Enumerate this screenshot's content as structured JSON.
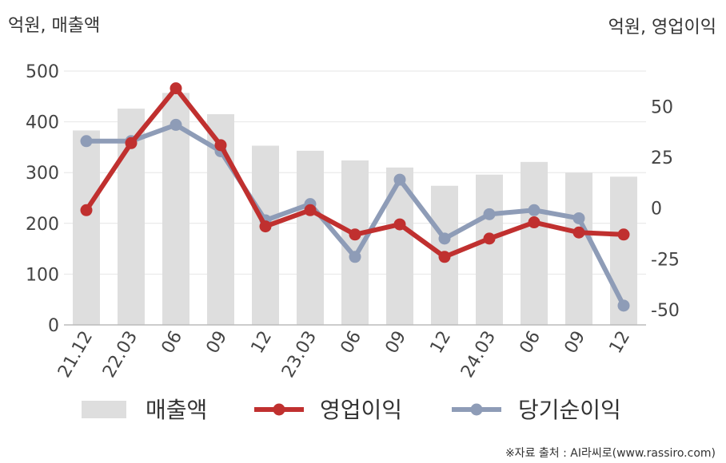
{
  "chart_data": {
    "type": "bar+line",
    "categories": [
      "21.12",
      "22.03",
      "06",
      "09",
      "12",
      "23.03",
      "06",
      "09",
      "12",
      "24.03",
      "06",
      "09",
      "12"
    ],
    "left_axis": {
      "label": "억원, 매출액",
      "ylim": [
        0,
        500
      ],
      "ticks": [
        0,
        100,
        200,
        300,
        400,
        500
      ]
    },
    "right_axis": {
      "label": "억원, 영업이익",
      "ylim": [
        -57.5,
        67.5
      ],
      "ticks": [
        -50,
        -25,
        0,
        25,
        50
      ]
    },
    "series": [
      {
        "name": "매출액",
        "type": "bar",
        "axis": "left",
        "color": "#dedede",
        "values": [
          383,
          426,
          457,
          415,
          353,
          343,
          324,
          310,
          274,
          296,
          321,
          300,
          292
        ]
      },
      {
        "name": "영업이익",
        "type": "line",
        "axis": "right",
        "color": "#c0302f",
        "values": [
          -1,
          32,
          59,
          31,
          -9,
          -1,
          -13,
          -8,
          -24,
          -15,
          -7,
          -12,
          -13
        ]
      },
      {
        "name": "당기순이익",
        "type": "line",
        "axis": "right",
        "color": "#8e9cb7",
        "values": [
          33,
          33,
          41,
          28,
          -6,
          2,
          -24,
          14,
          -15,
          -3,
          -1,
          -5,
          -48
        ]
      }
    ],
    "grid": true,
    "legend": "bottom"
  },
  "source": "※자료 출처 : AI라씨로(www.rassiro.com)"
}
